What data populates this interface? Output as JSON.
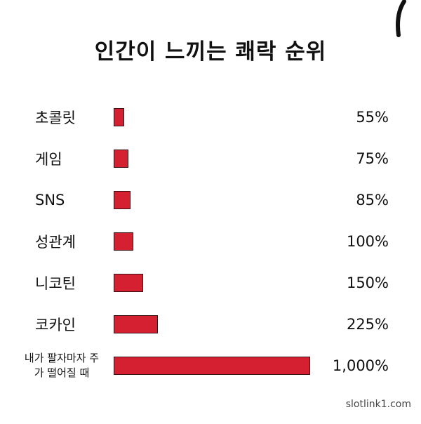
{
  "chart_data": {
    "type": "barh",
    "title": "인간이 느끼는 쾌락 순위",
    "categories": [
      "초콜릿",
      "게임",
      "SNS",
      "성관계",
      "니코틴",
      "코카인",
      "내가 팔자마자 주가 떨어질 때"
    ],
    "values": [
      55,
      75,
      85,
      100,
      150,
      225,
      1000
    ],
    "value_labels": [
      "55%",
      "75%",
      "85%",
      "100%",
      "150%",
      "225%",
      "1,000%"
    ],
    "color": "#d42030"
  },
  "watermark": "slotlink1.com"
}
